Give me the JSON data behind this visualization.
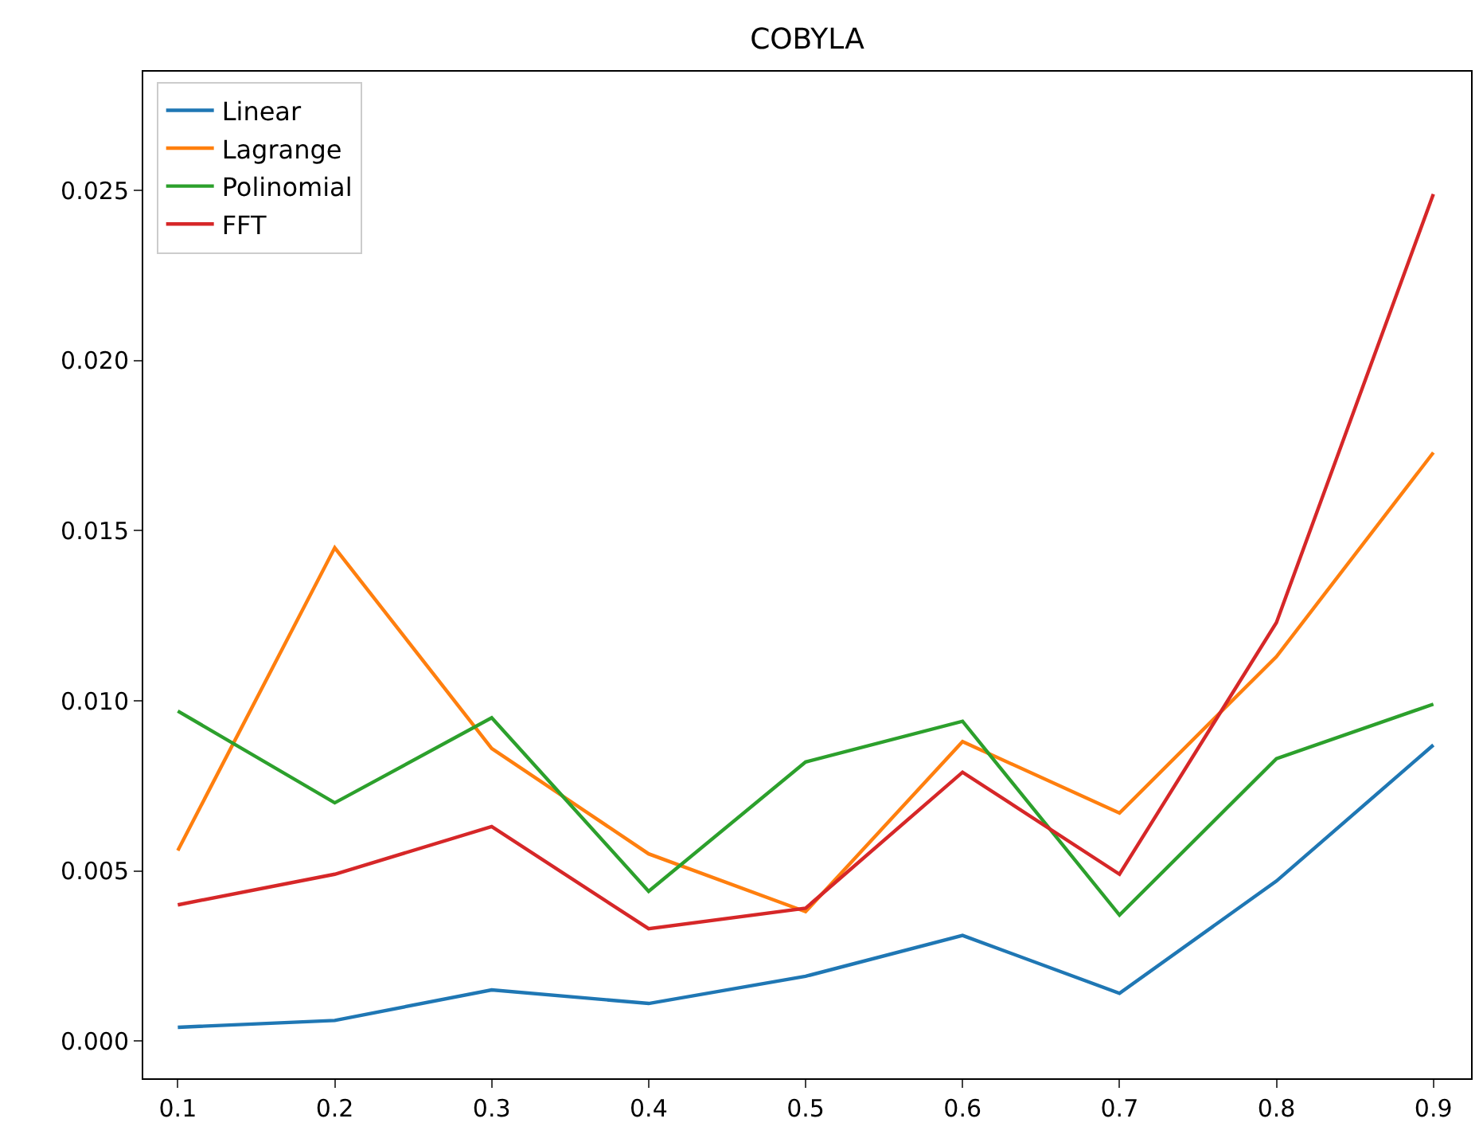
{
  "chart_data": {
    "type": "line",
    "title": "COBYLA",
    "x": [
      0.1,
      0.2,
      0.3,
      0.4,
      0.5,
      0.6,
      0.7,
      0.8,
      0.9
    ],
    "series": [
      {
        "name": "Linear",
        "color": "#1f77b4",
        "values": [
          0.0004,
          0.0006,
          0.0015,
          0.0011,
          0.0019,
          0.0031,
          0.0014,
          0.0047,
          0.0087
        ]
      },
      {
        "name": "Lagrange",
        "color": "#ff7f0e",
        "values": [
          0.0056,
          0.0145,
          0.0086,
          0.0055,
          0.0038,
          0.0088,
          0.0067,
          0.0113,
          0.0173
        ]
      },
      {
        "name": "Polinomial",
        "color": "#2ca02c",
        "values": [
          0.0097,
          0.007,
          0.0095,
          0.0044,
          0.0082,
          0.0094,
          0.0037,
          0.0083,
          0.0099
        ]
      },
      {
        "name": "FFT",
        "color": "#d62728",
        "values": [
          0.004,
          0.0049,
          0.0063,
          0.0033,
          0.0039,
          0.0079,
          0.0049,
          0.0123,
          0.0249
        ]
      }
    ],
    "xlim": [
      0.078,
      0.924
    ],
    "xticks": [
      0.1,
      0.2,
      0.3,
      0.4,
      0.5,
      0.6,
      0.7,
      0.8,
      0.9
    ],
    "ylim": [
      -0.0011,
      0.0285
    ],
    "yticks": [
      {
        "value": 0,
        "label": "0.000"
      },
      {
        "value": 0.005,
        "label": "0.005"
      },
      {
        "value": 0.01,
        "label": "0.010"
      },
      {
        "value": 0.015,
        "label": "0.015"
      },
      {
        "value": 0.02,
        "label": "0.020"
      },
      {
        "value": 0.025,
        "label": "0.025"
      }
    ],
    "legend": "top left",
    "line_style": "solid",
    "marker": "none"
  }
}
